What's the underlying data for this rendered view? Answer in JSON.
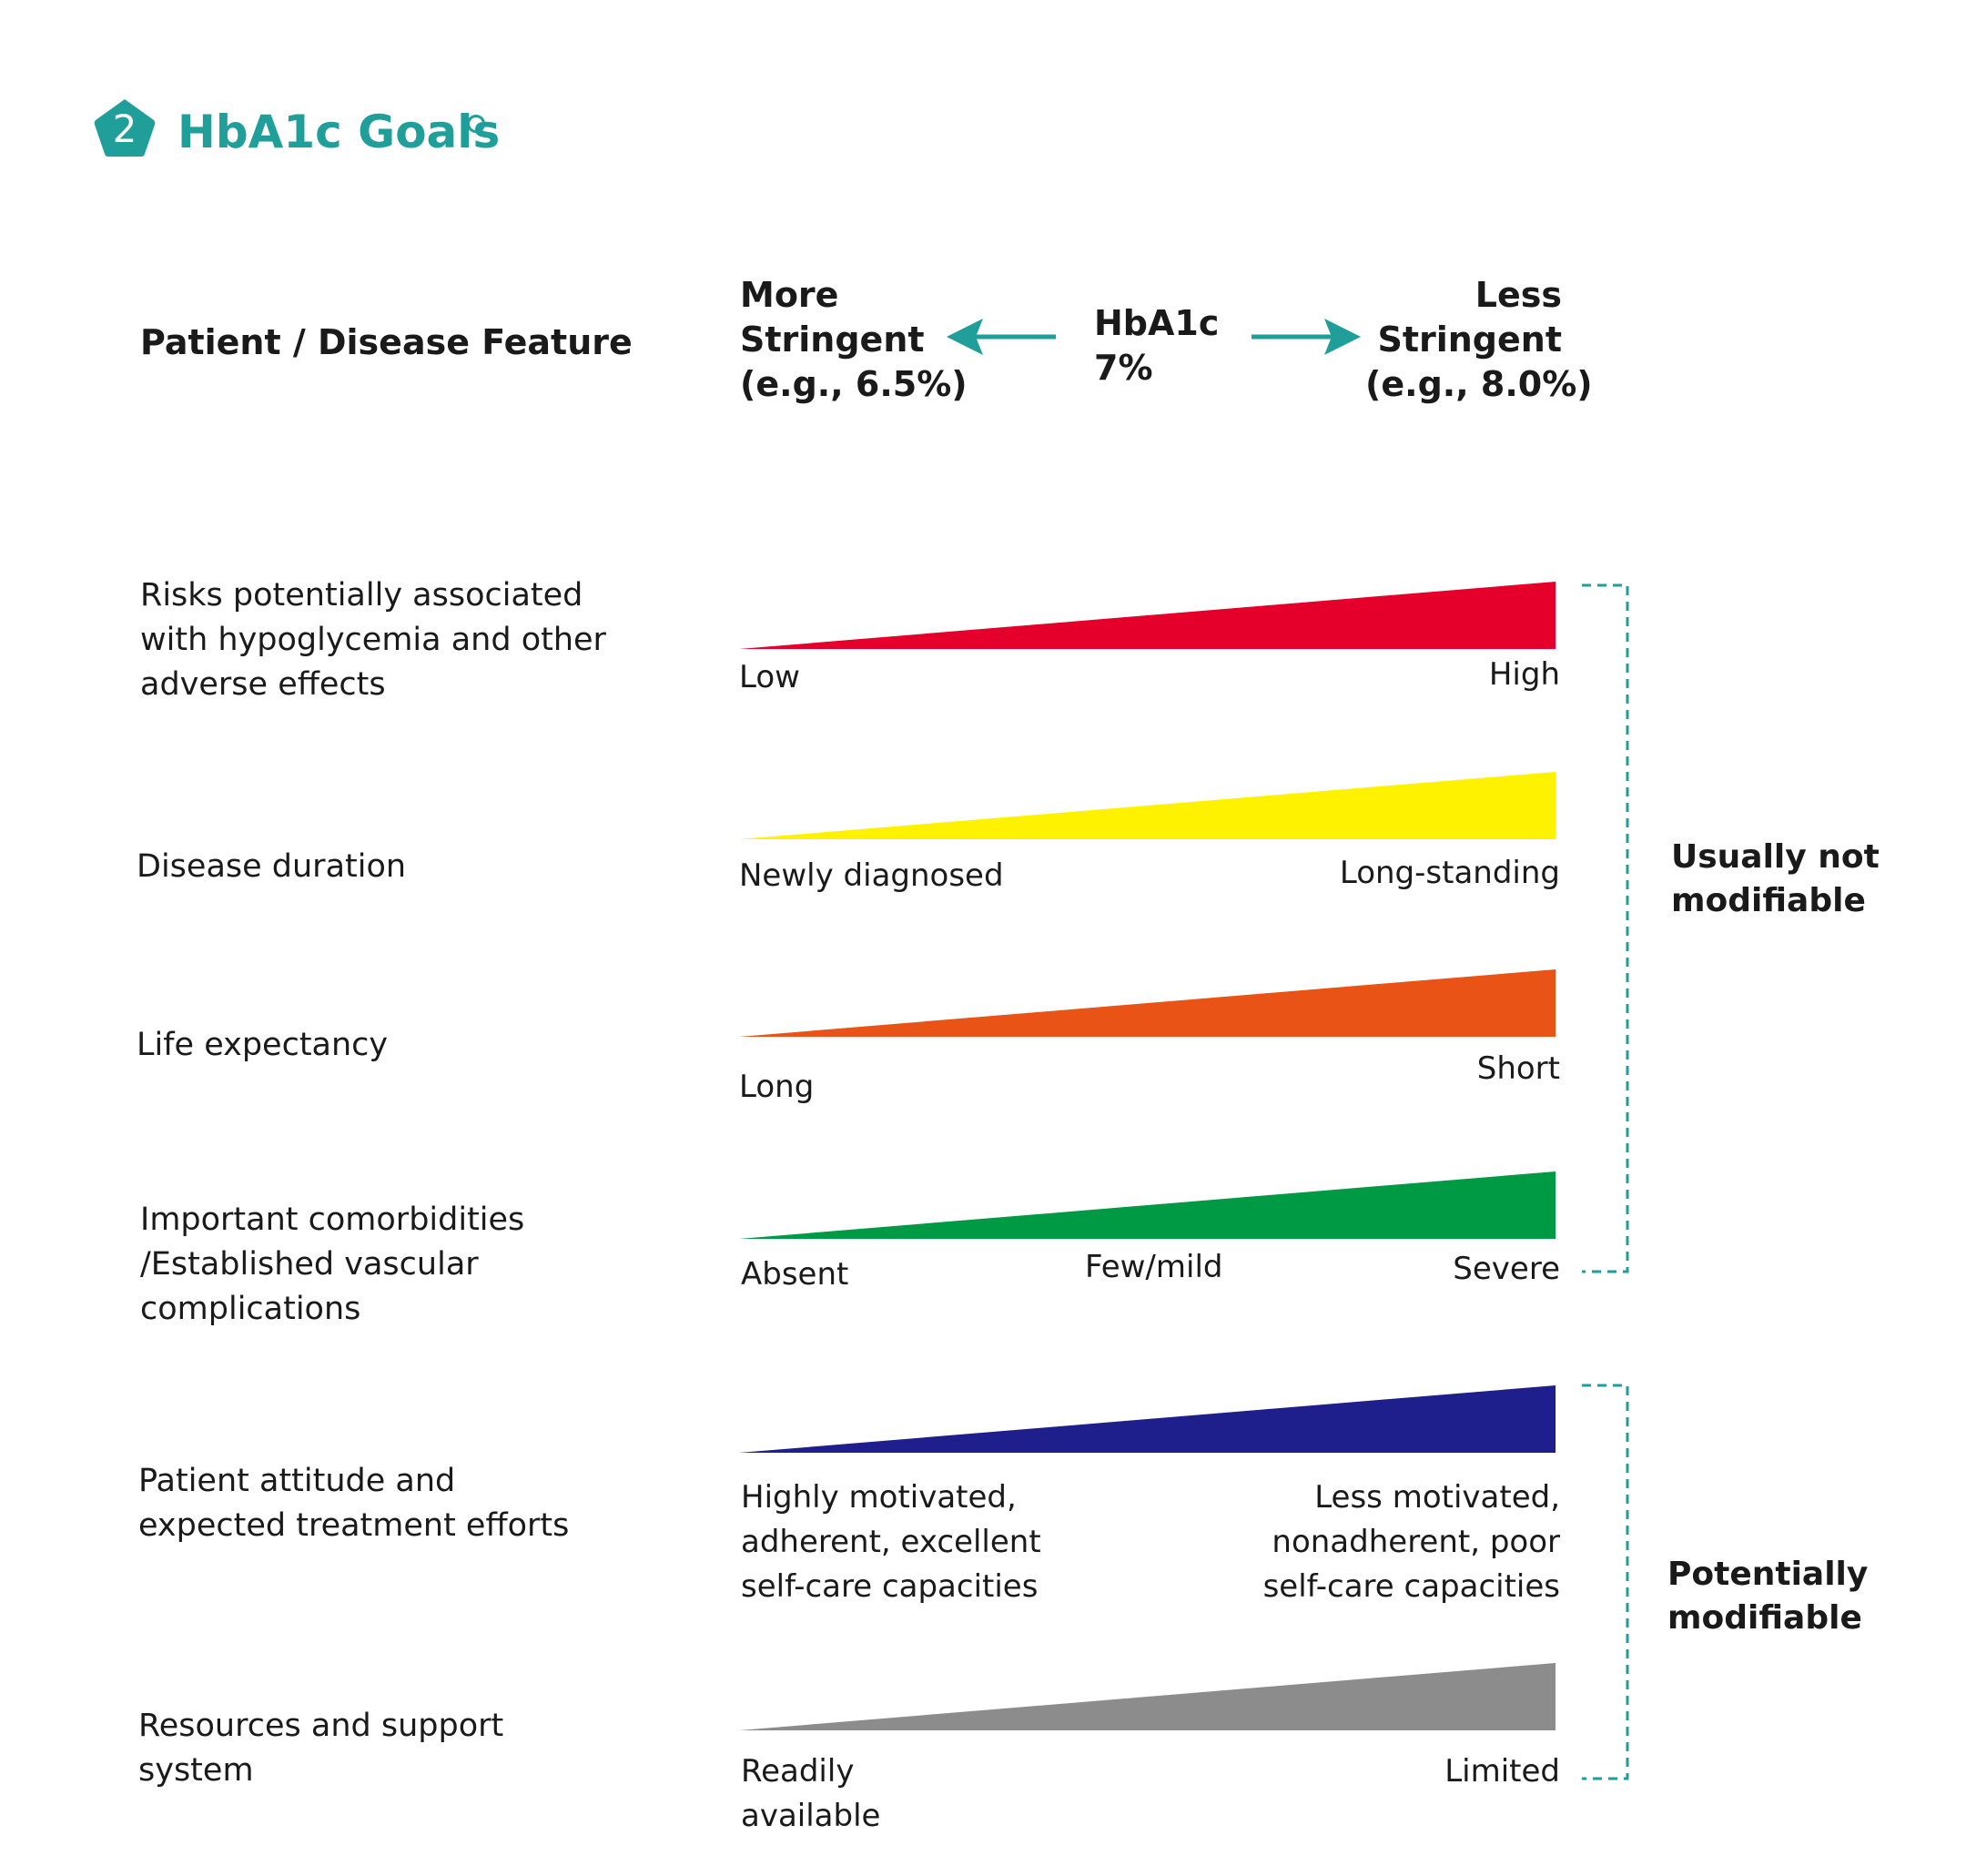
{
  "header": {
    "badge_number": "2",
    "title": "HbA1c Goals",
    "accent_color": "#1f9e9a"
  },
  "columns": {
    "feature_heading": "Patient / Disease Feature",
    "more_stringent": [
      "More",
      "Stringent",
      "(e.g., 6.5%)"
    ],
    "center": [
      "HbA1c",
      "7%"
    ],
    "less_stringent": [
      "Less",
      "Stringent",
      "(e.g., 8.0%)"
    ]
  },
  "rows": [
    {
      "feature": [
        "Risks potentially associated",
        "with hypoglycemia and other",
        "adverse effects"
      ],
      "color": "#e4002b",
      "low_label": [
        "Low"
      ],
      "mid_label": [],
      "high_label": [
        "High"
      ]
    },
    {
      "feature": [
        "Disease duration"
      ],
      "color": "#fff200",
      "low_label": [
        "Newly diagnosed"
      ],
      "mid_label": [],
      "high_label": [
        "Long-standing"
      ]
    },
    {
      "feature": [
        "Life expectancy"
      ],
      "color": "#e95316",
      "low_label": [
        "Long"
      ],
      "mid_label": [],
      "high_label": [
        "Short"
      ]
    },
    {
      "feature": [
        "Important comorbidities",
        "/Established vascular",
        "complications"
      ],
      "color": "#009a44",
      "low_label": [
        "Absent"
      ],
      "mid_label": [
        "Few/mild"
      ],
      "high_label": [
        "Severe"
      ]
    },
    {
      "feature": [
        "Patient attitude and",
        "expected treatment efforts"
      ],
      "color": "#1e1e8c",
      "low_label": [
        "Highly motivated,",
        "adherent, excellent",
        "self-care capacities"
      ],
      "mid_label": [],
      "high_label": [
        "Less motivated,",
        "nonadherent, poor",
        "self-care capacities"
      ]
    },
    {
      "feature": [
        "Resources and support",
        "system"
      ],
      "color": "#8c8c8c",
      "low_label": [
        "Readily",
        "available"
      ],
      "mid_label": [],
      "high_label": [
        "Limited"
      ]
    }
  ],
  "groups": [
    {
      "label": [
        "Usually not",
        "modifiable"
      ]
    },
    {
      "label": [
        "Potentially",
        "modifiable"
      ]
    }
  ]
}
